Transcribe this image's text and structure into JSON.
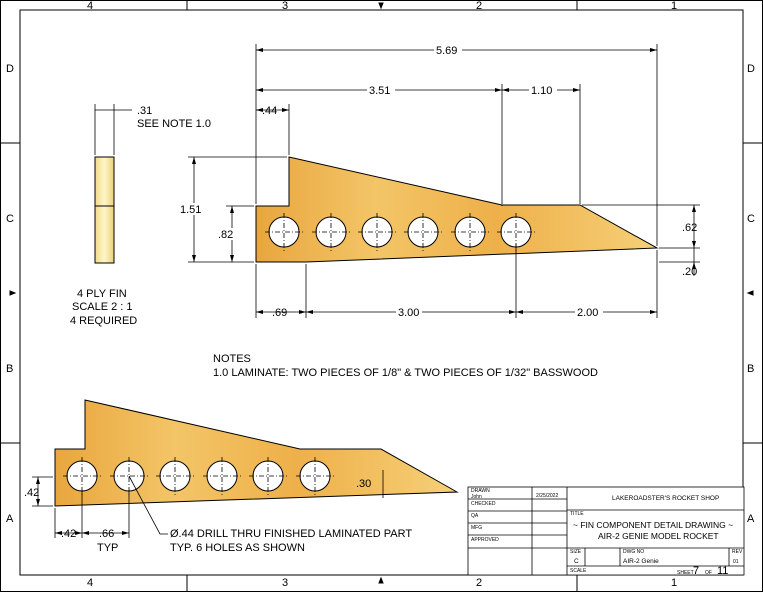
{
  "zones": {
    "columns": [
      "4",
      "3",
      "2",
      "1"
    ],
    "rows": [
      "D",
      "C",
      "B",
      "A"
    ]
  },
  "dimensions": {
    "overall_length": "5.69",
    "root_top_length": "3.51",
    "tip_length": "1.10",
    "tab_length": ".44",
    "root_height": "1.51",
    "fin_height": ".82",
    "tip_height": ".62",
    "bottom_offset": ".20",
    "first_hole": ".69",
    "hole_span": "3.00",
    "last_hole_to_tip": "2.00",
    "thickness": ".31",
    "lower_edge_offset": ".42",
    "lower_first_hole": ".42",
    "hole_spacing": ".66",
    "lower_tip_height": ".30"
  },
  "labels": {
    "see_note": "SEE NOTE 1.0",
    "typ": "TYP",
    "fin_lines": [
      "4 PLY FIN",
      "SCALE 2 : 1",
      "4 REQUIRED"
    ],
    "notes_title": "NOTES",
    "note_1": "1.0 LAMINATE: TWO PIECES OF 1/8\" & TWO PIECES OF 1/32\" BASSWOOD",
    "drill_callout": "Ø.44 DRILL THRU FINISHED LAMINATED PART",
    "drill_callout_2": "TYP. 6 HOLES AS SHOWN"
  },
  "title_block": {
    "drawn_label": "DRAWN",
    "drawn_by": "John",
    "date": "2/25/2022",
    "checked_label": "CHECKED",
    "qa_label": "QA",
    "mfg_label": "MFG",
    "approved_label": "APPROVED",
    "company": "LAKEROADSTER'S ROCKET SHOP",
    "title_label": "TITLE",
    "title_line_1": "~ FIN COMPONENT DETAIL DRAWING ~",
    "title_line_2": "AIR-2 GENIE MODEL ROCKET",
    "size_label": "SIZE",
    "size": "C",
    "dwg_label": "DWG NO",
    "dwg_no": "AIR-2 Genie",
    "rev_label": "REV",
    "rev": "01",
    "scale_label": "SCALE",
    "sheet_label": "SHEET",
    "sheet": "7",
    "of_label": "OF",
    "of_total": "11"
  },
  "colors": {
    "wood_light": "#f6d27a",
    "wood_mid": "#eeb14a",
    "wood_dark": "#d88f2a",
    "line": "#000000"
  }
}
